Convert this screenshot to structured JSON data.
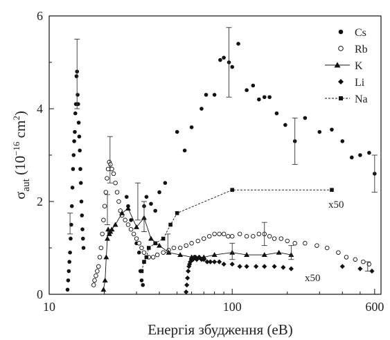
{
  "chart_data": {
    "type": "scatter",
    "title": "",
    "xlabel": "Енергія збудження (еВ)",
    "ylabel": {
      "main": "σ",
      "sub": "aut",
      "rest": " (10",
      "sup": "−16",
      "unit": " cm",
      "sup2": "2",
      "close": ")"
    },
    "xscale": "log",
    "xlim": [
      10,
      650
    ],
    "ylim": [
      0,
      6
    ],
    "x_tick_labels": [
      "10",
      "100",
      "600"
    ],
    "x_ticks": [
      10,
      100,
      600
    ],
    "y_tick_labels": [
      "0",
      "2",
      "4",
      "6"
    ],
    "y_ticks": [
      0,
      2,
      4,
      6
    ],
    "grid": false,
    "legend_position": "top-right",
    "annotations": [
      "x50",
      "x50"
    ],
    "series": [
      {
        "name": "Cs",
        "marker": "filled-circle",
        "line": "none",
        "points": [
          [
            12.6,
            0.1
          ],
          [
            12.7,
            0.3
          ],
          [
            12.8,
            0.5
          ],
          [
            12.9,
            0.7
          ],
          [
            13.0,
            0.9
          ],
          [
            13.1,
            1.2
          ],
          [
            13.2,
            1.5
          ],
          [
            13.3,
            1.9
          ],
          [
            13.4,
            2.3
          ],
          [
            13.5,
            2.7
          ],
          [
            13.6,
            3.0
          ],
          [
            13.7,
            3.3
          ],
          [
            13.8,
            3.5
          ],
          [
            13.9,
            3.9
          ],
          [
            14.0,
            4.1
          ],
          [
            14.1,
            4.7
          ],
          [
            14.2,
            4.8
          ],
          [
            14.3,
            4.3
          ],
          [
            14.4,
            4.1
          ],
          [
            14.5,
            3.7
          ],
          [
            14.6,
            3.4
          ],
          [
            14.7,
            3.1
          ],
          [
            14.8,
            2.7
          ],
          [
            14.9,
            2.4
          ],
          [
            15.0,
            2.0
          ],
          [
            15.1,
            1.7
          ],
          [
            15.2,
            1.4
          ],
          [
            15.3,
            1.2
          ],
          [
            15.4,
            1.0
          ],
          [
            26.5,
            2.1
          ],
          [
            27.0,
            1.9
          ],
          [
            28.0,
            1.6
          ],
          [
            29.0,
            1.3
          ],
          [
            30.0,
            1.1
          ],
          [
            31.0,
            0.9
          ],
          [
            31.5,
            0.5
          ],
          [
            32.0,
            0.3
          ],
          [
            32.5,
            0.2
          ],
          [
            33.0,
            1.9
          ],
          [
            34.0,
            2.1
          ],
          [
            36.0,
            1.95
          ],
          [
            38.0,
            1.8
          ],
          [
            40.0,
            2.2
          ],
          [
            43.0,
            2.4
          ],
          [
            50,
            3.5
          ],
          [
            55,
            3.1
          ],
          [
            60,
            3.6
          ],
          [
            68,
            4.0
          ],
          [
            72,
            4.3
          ],
          [
            80,
            4.3
          ],
          [
            86,
            5.05
          ],
          [
            90,
            5.1
          ],
          [
            96,
            5.0
          ],
          [
            100,
            4.9
          ],
          [
            108,
            5.4
          ],
          [
            120,
            4.4
          ],
          [
            130,
            4.5
          ],
          [
            140,
            4.2
          ],
          [
            150,
            4.25
          ],
          [
            160,
            4.25
          ],
          [
            175,
            3.9
          ],
          [
            195,
            3.65
          ],
          [
            220,
            3.3
          ],
          [
            250,
            3.8
          ],
          [
            300,
            3.5
          ],
          [
            350,
            3.55
          ],
          [
            400,
            3.3
          ],
          [
            450,
            2.95
          ],
          [
            500,
            3.0
          ],
          [
            560,
            3.05
          ],
          [
            600,
            2.6
          ]
        ]
      },
      {
        "name": "Rb",
        "marker": "open-circle",
        "line": "none",
        "points": [
          [
            17.5,
            0.2
          ],
          [
            17.7,
            0.3
          ],
          [
            18.0,
            0.4
          ],
          [
            18.3,
            0.5
          ],
          [
            18.6,
            0.6
          ],
          [
            18.9,
            0.8
          ],
          [
            19.2,
            1.0
          ],
          [
            19.5,
            1.3
          ],
          [
            19.8,
            1.6
          ],
          [
            20.1,
            1.9
          ],
          [
            20.4,
            2.2
          ],
          [
            20.7,
            2.5
          ],
          [
            21.0,
            2.7
          ],
          [
            21.3,
            2.85
          ],
          [
            21.6,
            2.8
          ],
          [
            22.0,
            2.7
          ],
          [
            22.5,
            2.6
          ],
          [
            23.0,
            2.4
          ],
          [
            23.5,
            2.2
          ],
          [
            24.0,
            2.0
          ],
          [
            24.5,
            1.8
          ],
          [
            25.0,
            1.7
          ],
          [
            26.0,
            1.6
          ],
          [
            27.0,
            1.5
          ],
          [
            28.0,
            1.4
          ],
          [
            29.0,
            1.3
          ],
          [
            30.0,
            1.2
          ],
          [
            31.0,
            1.1
          ],
          [
            32.0,
            1.0
          ],
          [
            33.0,
            0.9
          ],
          [
            35.0,
            0.8
          ],
          [
            37.0,
            0.8
          ],
          [
            39.0,
            0.85
          ],
          [
            42.0,
            0.9
          ],
          [
            45.0,
            0.95
          ],
          [
            48.0,
            1.0
          ],
          [
            52.0,
            1.0
          ],
          [
            56.0,
            1.05
          ],
          [
            60.0,
            1.1
          ],
          [
            65.0,
            1.15
          ],
          [
            70.0,
            1.2
          ],
          [
            75.0,
            1.25
          ],
          [
            80.0,
            1.3
          ],
          [
            85.0,
            1.3
          ],
          [
            90.0,
            1.3
          ],
          [
            95.0,
            1.25
          ],
          [
            100.0,
            1.25
          ],
          [
            110.0,
            1.3
          ],
          [
            120.0,
            1.25
          ],
          [
            130.0,
            1.25
          ],
          [
            140.0,
            1.3
          ],
          [
            150.0,
            1.3
          ],
          [
            160.0,
            1.25
          ],
          [
            170.0,
            1.2
          ],
          [
            185.0,
            1.2
          ],
          [
            200.0,
            1.15
          ],
          [
            220.0,
            1.1
          ],
          [
            250.0,
            1.1
          ],
          [
            290.0,
            1.05
          ],
          [
            330.0,
            1.0
          ],
          [
            380.0,
            0.9
          ],
          [
            420.0,
            0.8
          ],
          [
            470.0,
            0.75
          ],
          [
            520.0,
            0.7
          ],
          [
            560.0,
            0.65
          ]
        ]
      },
      {
        "name": "K",
        "marker": "filled-triangle",
        "line": "solid",
        "points": [
          [
            19.8,
            0.1
          ],
          [
            20.2,
            0.3
          ],
          [
            20.5,
            0.8
          ],
          [
            20.8,
            1.2
          ],
          [
            21.0,
            1.4
          ],
          [
            21.3,
            1.3
          ],
          [
            21.6,
            1.35
          ],
          [
            22.0,
            1.4
          ],
          [
            23.0,
            1.5
          ],
          [
            25.0,
            1.75
          ],
          [
            27.0,
            1.85
          ],
          [
            30.0,
            1.45
          ],
          [
            33.0,
            1.65
          ],
          [
            36.0,
            1.2
          ],
          [
            40.0,
            1.05
          ],
          [
            45.0,
            0.9
          ],
          [
            52.0,
            0.85
          ],
          [
            60.0,
            0.8
          ],
          [
            70.0,
            0.8
          ],
          [
            80.0,
            0.85
          ],
          [
            100.0,
            0.9
          ],
          [
            120.0,
            0.85
          ],
          [
            150.0,
            0.85
          ],
          [
            180.0,
            0.9
          ],
          [
            210.0,
            0.85
          ]
        ]
      },
      {
        "name": "Li",
        "marker": "filled-diamond",
        "line": "none",
        "points": [
          [
            56.0,
            0.05
          ],
          [
            56.5,
            0.2
          ],
          [
            57.0,
            0.35
          ],
          [
            57.5,
            0.5
          ],
          [
            58.0,
            0.6
          ],
          [
            58.5,
            0.65
          ],
          [
            59.0,
            0.7
          ],
          [
            60.0,
            0.75
          ],
          [
            61.0,
            0.75
          ],
          [
            62.0,
            0.8
          ],
          [
            63.0,
            0.8
          ],
          [
            64.0,
            0.75
          ],
          [
            66.0,
            0.8
          ],
          [
            68.0,
            0.75
          ],
          [
            70.0,
            0.75
          ],
          [
            73.0,
            0.7
          ],
          [
            76.0,
            0.7
          ],
          [
            80.0,
            0.7
          ],
          [
            85.0,
            0.7
          ],
          [
            90.0,
            0.65
          ],
          [
            100.0,
            0.65
          ],
          [
            110.0,
            0.6
          ],
          [
            120.0,
            0.6
          ],
          [
            135.0,
            0.6
          ],
          [
            150.0,
            0.6
          ],
          [
            170.0,
            0.6
          ],
          [
            190.0,
            0.58
          ],
          [
            210.0,
            0.55
          ],
          [
            400.0,
            0.6
          ],
          [
            500.0,
            0.55
          ],
          [
            580.0,
            0.5
          ]
        ]
      },
      {
        "name": "Na",
        "marker": "filled-square",
        "line": "dashed",
        "points": [
          [
            32.0,
            0.5
          ],
          [
            33.0,
            0.7
          ],
          [
            34.0,
            0.8
          ],
          [
            35.0,
            1.0
          ],
          [
            38.0,
            1.1
          ],
          [
            42.0,
            1.2
          ],
          [
            46.0,
            1.5
          ],
          [
            50.0,
            1.75
          ],
          [
            100.0,
            2.25
          ],
          [
            350.0,
            2.25
          ]
        ]
      }
    ],
    "error_bars": [
      {
        "x": 14.2,
        "y": 4.8,
        "lo": 4.0,
        "hi": 5.5
      },
      {
        "x": 13.0,
        "y": 1.6,
        "lo": 1.3,
        "hi": 1.75
      },
      {
        "x": 21.5,
        "y": 2.9,
        "lo": 2.4,
        "hi": 3.4
      },
      {
        "x": 20.8,
        "y": 1.8,
        "lo": 1.5,
        "hi": 2.15
      },
      {
        "x": 30.5,
        "y": 2.0,
        "lo": 1.6,
        "hi": 2.4
      },
      {
        "x": 33.0,
        "y": 1.65,
        "lo": 1.35,
        "hi": 2.0
      },
      {
        "x": 44.5,
        "y": 1.1,
        "lo": 0.9,
        "hi": 1.3
      },
      {
        "x": 96.0,
        "y": 5.0,
        "lo": 4.25,
        "hi": 5.75
      },
      {
        "x": 100.0,
        "y": 0.9,
        "lo": 0.75,
        "hi": 1.1
      },
      {
        "x": 150.0,
        "y": 1.3,
        "lo": 1.05,
        "hi": 1.55
      },
      {
        "x": 210.0,
        "y": 0.9,
        "lo": 0.75,
        "hi": 1.05
      },
      {
        "x": 220.0,
        "y": 3.3,
        "lo": 2.8,
        "hi": 3.8
      },
      {
        "x": 550.0,
        "y": 0.6,
        "lo": 0.5,
        "hi": 0.7
      },
      {
        "x": 600.0,
        "y": 2.6,
        "lo": 2.2,
        "hi": 3.0
      }
    ]
  }
}
